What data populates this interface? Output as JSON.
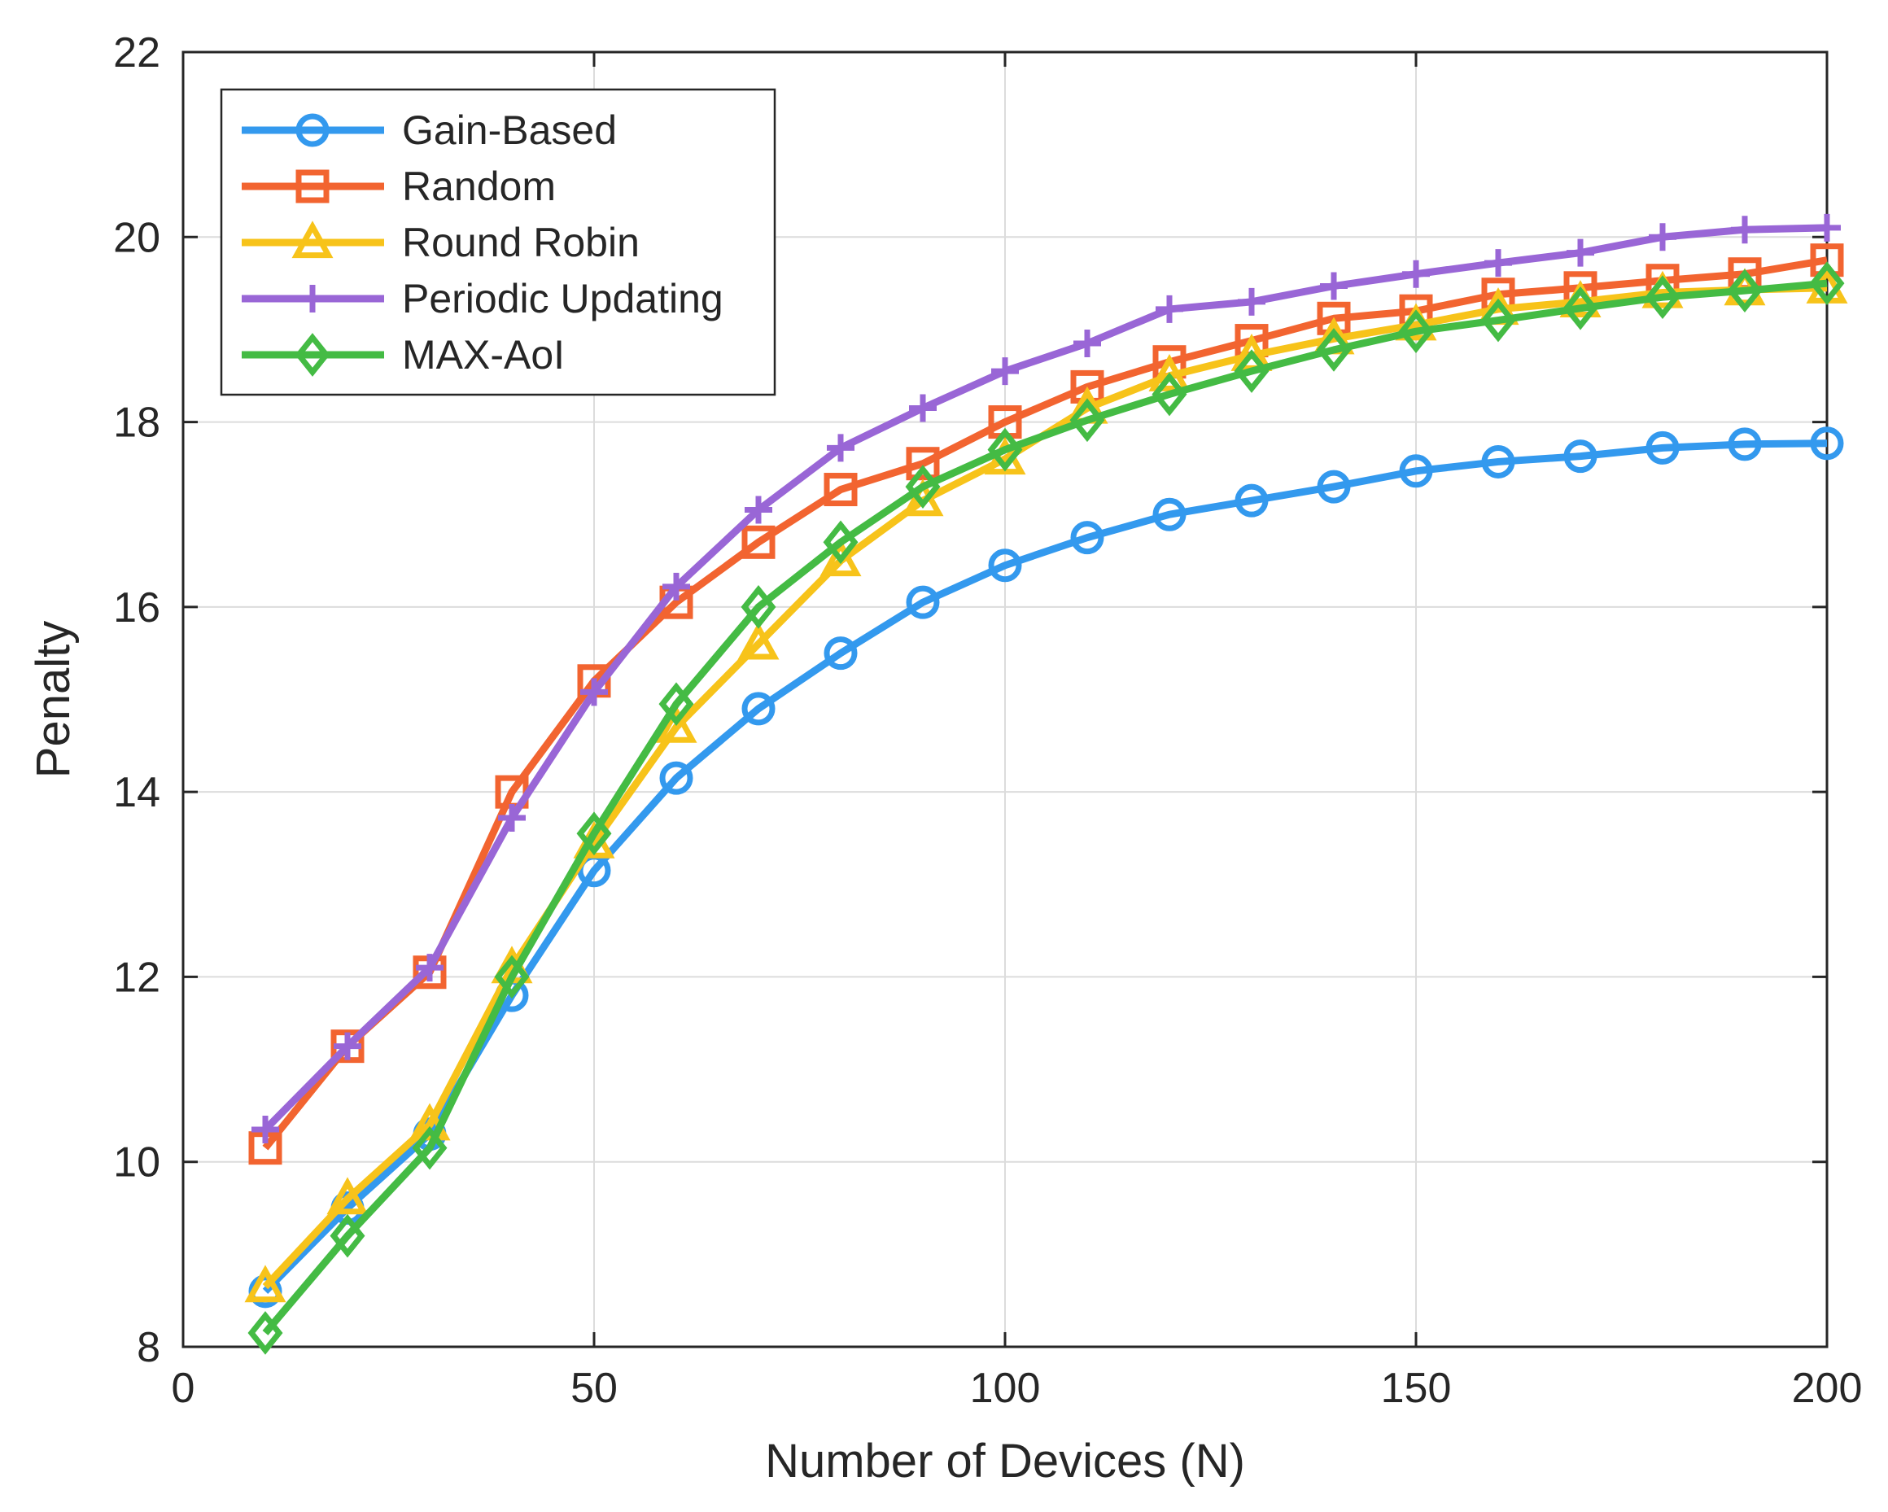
{
  "chart_data": {
    "type": "line",
    "title": "",
    "xlabel": "Number of Devices (N)",
    "ylabel": "Penalty",
    "xlim": [
      0,
      200
    ],
    "ylim": [
      8,
      22
    ],
    "xticks": [
      0,
      50,
      100,
      150,
      200
    ],
    "yticks": [
      8,
      10,
      12,
      14,
      16,
      18,
      20,
      22
    ],
    "grid": true,
    "legend_position": "top-left",
    "x": [
      10,
      20,
      30,
      40,
      50,
      60,
      70,
      80,
      90,
      100,
      110,
      120,
      130,
      140,
      150,
      160,
      170,
      180,
      190,
      200
    ],
    "series": [
      {
        "name": "Gain-Based",
        "color": "#3399ee",
        "marker": "circle",
        "values": [
          8.6,
          9.5,
          10.3,
          11.8,
          13.15,
          14.15,
          14.9,
          15.5,
          16.05,
          16.45,
          16.75,
          17.0,
          17.15,
          17.3,
          17.47,
          17.57,
          17.63,
          17.72,
          17.76,
          17.77
        ]
      },
      {
        "name": "Random",
        "color": "#f26430",
        "marker": "square",
        "values": [
          10.15,
          11.25,
          12.05,
          14.0,
          15.2,
          16.05,
          16.7,
          17.27,
          17.55,
          18.0,
          18.38,
          18.65,
          18.88,
          19.12,
          19.2,
          19.38,
          19.45,
          19.53,
          19.6,
          19.75
        ]
      },
      {
        "name": "Round Robin",
        "color": "#f7c31a",
        "marker": "triangle",
        "values": [
          8.65,
          9.6,
          10.4,
          12.1,
          13.45,
          14.7,
          15.6,
          16.5,
          17.15,
          17.6,
          18.15,
          18.5,
          18.72,
          18.9,
          19.05,
          19.22,
          19.3,
          19.4,
          19.43,
          19.45
        ]
      },
      {
        "name": "Periodic Updating",
        "color": "#9966d6",
        "marker": "plus",
        "values": [
          10.35,
          11.25,
          12.1,
          13.72,
          15.08,
          16.22,
          17.05,
          17.72,
          18.15,
          18.55,
          18.85,
          19.22,
          19.3,
          19.47,
          19.6,
          19.72,
          19.83,
          20.0,
          20.08,
          20.1
        ]
      },
      {
        "name": "MAX-AoI",
        "color": "#44bb44",
        "marker": "diamond",
        "values": [
          8.15,
          9.2,
          10.15,
          12.0,
          13.55,
          14.95,
          16.0,
          16.7,
          17.3,
          17.7,
          18.02,
          18.3,
          18.55,
          18.78,
          18.98,
          19.1,
          19.23,
          19.35,
          19.42,
          19.5
        ]
      }
    ]
  }
}
